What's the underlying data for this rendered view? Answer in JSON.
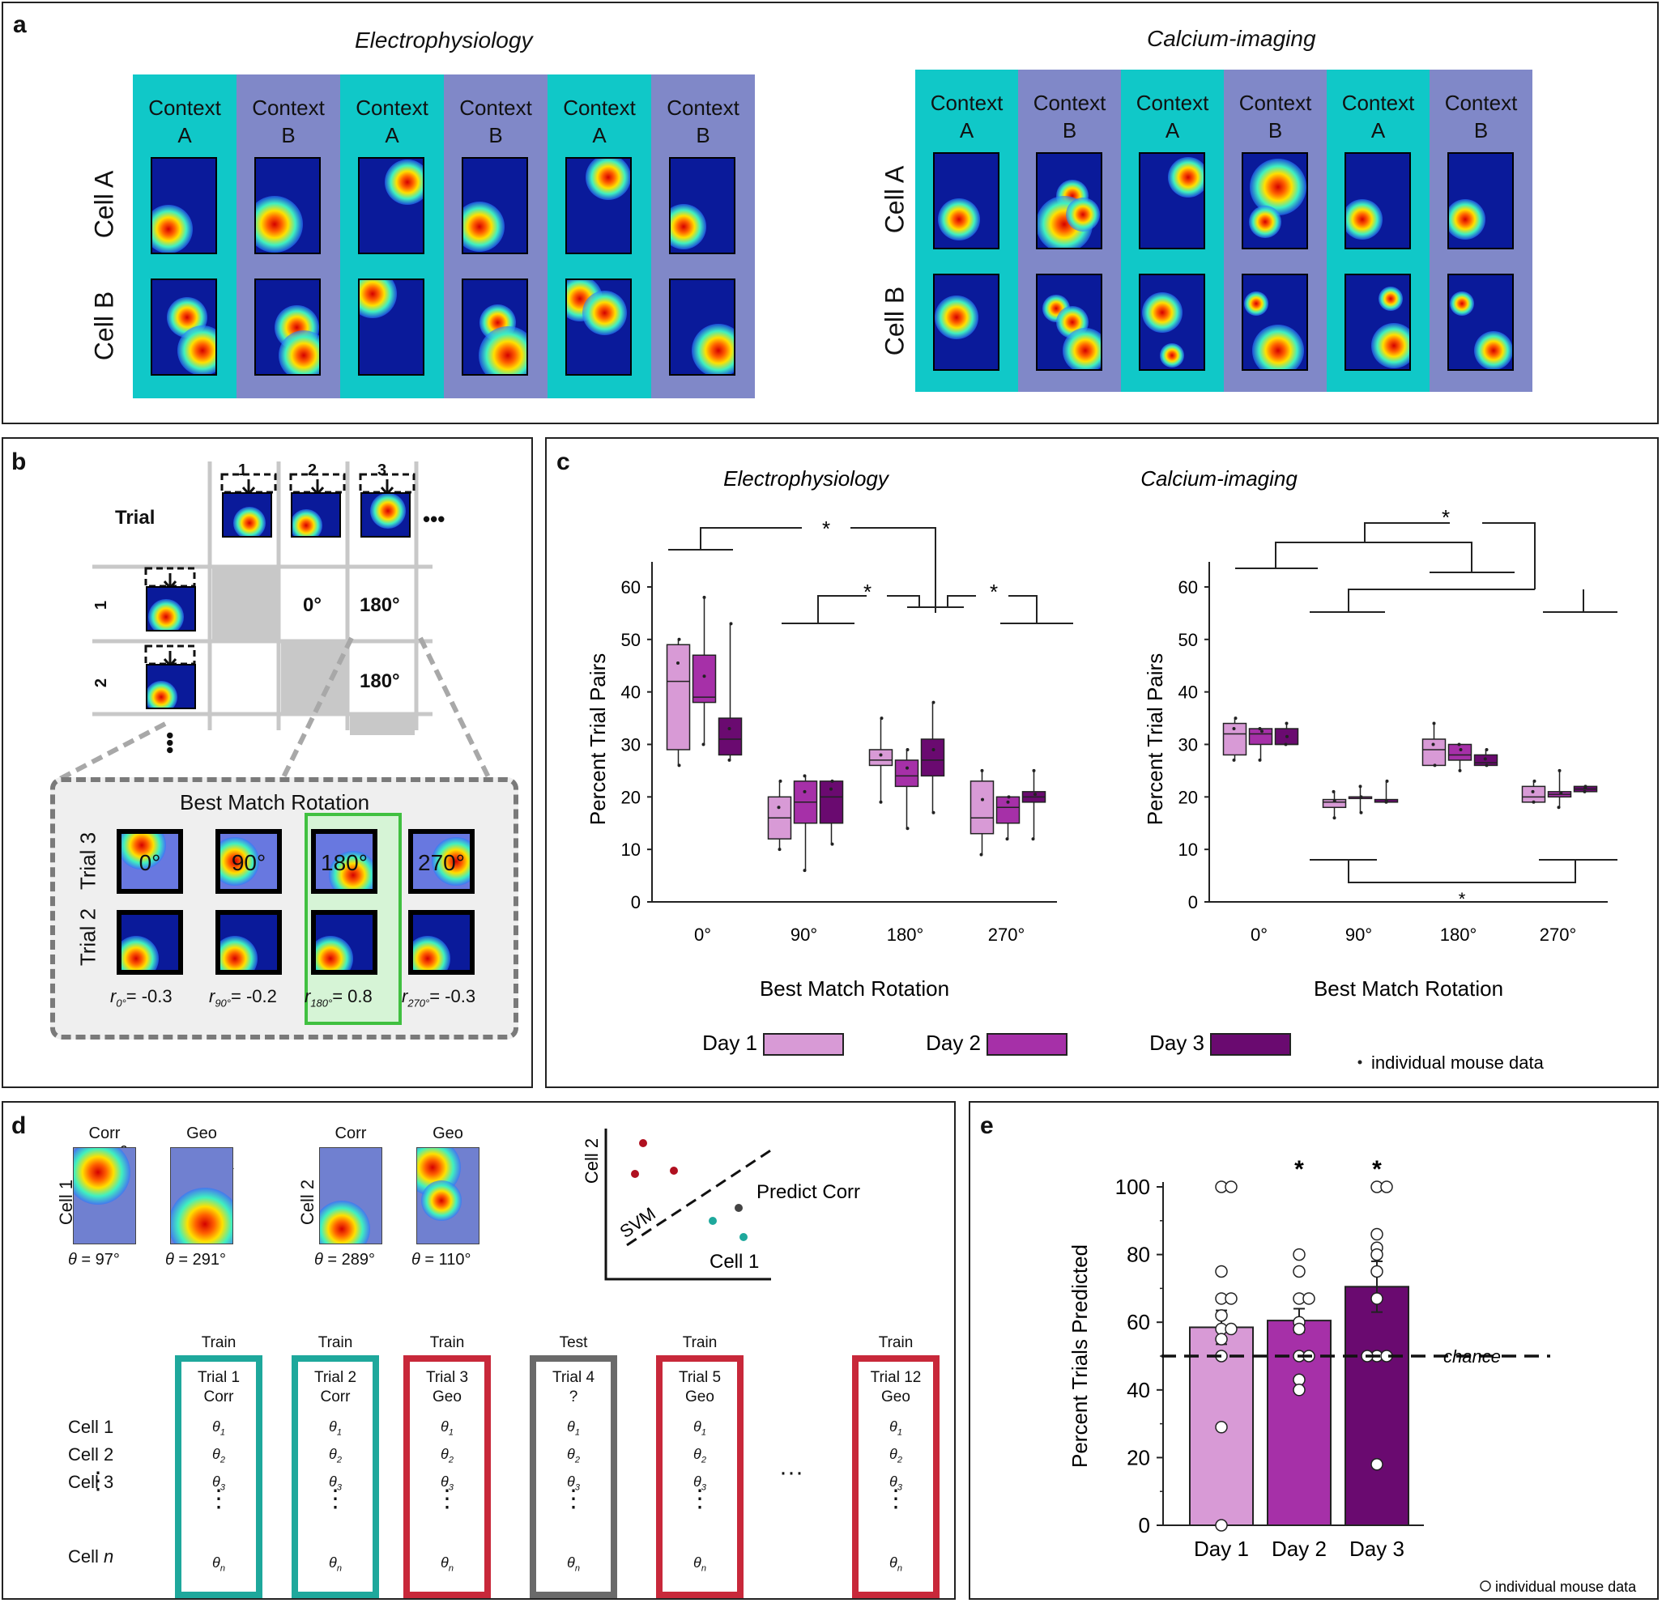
{
  "panel_a": {
    "label": "a",
    "ephys_title": "Electrophysiology",
    "calcium_title": "Calcium-imaging",
    "contexts": [
      {
        "word": "Context",
        "letter": "A"
      },
      {
        "word": "Context",
        "letter": "B"
      },
      {
        "word": "Context",
        "letter": "A"
      },
      {
        "word": "Context",
        "letter": "B"
      },
      {
        "word": "Context",
        "letter": "A"
      },
      {
        "word": "Context",
        "letter": "B"
      }
    ],
    "cell_a": "Cell A",
    "cell_b": "Cell B",
    "colors": {
      "context_a": "#10c8c8",
      "context_b": "#8088c8"
    }
  },
  "panel_b": {
    "label": "b",
    "trial_header": "Trial",
    "col_nums": [
      "1",
      "2",
      "3"
    ],
    "row_nums": [
      "1",
      "2"
    ],
    "ellipsis": "•••",
    "cells": {
      "r1c2": "0°",
      "r1c3": "180°",
      "r2c3": "180°"
    },
    "inset_title": "Best Match Rotation",
    "inset_rows": [
      "Trial 3",
      "Trial 2"
    ],
    "rotations": [
      "0°",
      "90°",
      "180°",
      "270°"
    ],
    "r_values": [
      {
        "sym": "r",
        "sub": "0°",
        "val": "= -0.3"
      },
      {
        "sym": "r",
        "sub": "90°",
        "val": "= -0.2"
      },
      {
        "sym": "r",
        "sub": "180°",
        "val": "= 0.8"
      },
      {
        "sym": "r",
        "sub": "270°",
        "val": "= -0.3"
      }
    ]
  },
  "panel_c": {
    "label": "c",
    "legend": {
      "day1": "Day 1",
      "day2": "Day 2",
      "day3": "Day 3",
      "mouse": "individual mouse data",
      "colors": [
        "#d89ad6",
        "#a630a8",
        "#6a0a70"
      ]
    },
    "star": "*",
    "chart_data": [
      {
        "type": "box",
        "title": "Electrophysiology",
        "xlabel": "Best Match Rotation",
        "ylabel": "Percent Trial Pairs",
        "categories": [
          "0°",
          "90°",
          "180°",
          "270°"
        ],
        "ylim": [
          0,
          62
        ],
        "yticks": [
          "0",
          "10",
          "20",
          "30",
          "40",
          "50",
          "60"
        ],
        "series": [
          {
            "name": "Day 1",
            "boxes": [
              {
                "q1": 29,
                "med": 42,
                "q3": 49,
                "min": 26,
                "max": 50
              },
              {
                "q1": 12,
                "med": 16,
                "q3": 20,
                "min": 10,
                "max": 23
              },
              {
                "q1": 26,
                "med": 27,
                "q3": 29,
                "min": 19,
                "max": 35
              },
              {
                "q1": 13,
                "med": 16,
                "q3": 23,
                "min": 9,
                "max": 25
              }
            ]
          },
          {
            "name": "Day 2",
            "boxes": [
              {
                "q1": 38,
                "med": 39,
                "q3": 47,
                "min": 30,
                "max": 58
              },
              {
                "q1": 15,
                "med": 19,
                "q3": 23,
                "min": 6,
                "max": 24
              },
              {
                "q1": 22,
                "med": 24,
                "q3": 27,
                "min": 14,
                "max": 29
              },
              {
                "q1": 15,
                "med": 18,
                "q3": 20,
                "min": 12,
                "max": 20
              }
            ]
          },
          {
            "name": "Day 3",
            "boxes": [
              {
                "q1": 28,
                "med": 31,
                "q3": 35,
                "min": 27,
                "max": 53
              },
              {
                "q1": 15,
                "med": 20,
                "q3": 23,
                "min": 11,
                "max": 23
              },
              {
                "q1": 24,
                "med": 27,
                "q3": 31,
                "min": 17,
                "max": 38
              },
              {
                "q1": 19,
                "med": 20,
                "q3": 21,
                "min": 12,
                "max": 25
              }
            ]
          }
        ]
      },
      {
        "type": "box",
        "title": "Calcium-imaging",
        "xlabel": "Best Match Rotation",
        "ylabel": "Percent Trial Pairs",
        "categories": [
          "0°",
          "90°",
          "180°",
          "270°"
        ],
        "ylim": [
          0,
          62
        ],
        "yticks": [
          "0",
          "10",
          "20",
          "30",
          "40",
          "50",
          "60"
        ],
        "series": [
          {
            "name": "Day 1",
            "boxes": [
              {
                "q1": 28,
                "med": 32,
                "q3": 34,
                "min": 27,
                "max": 35
              },
              {
                "q1": 18,
                "med": 19,
                "q3": 19.5,
                "min": 16,
                "max": 21
              },
              {
                "q1": 26,
                "med": 29,
                "q3": 31,
                "min": 26,
                "max": 34
              },
              {
                "q1": 19,
                "med": 20,
                "q3": 22,
                "min": 19,
                "max": 23
              }
            ]
          },
          {
            "name": "Day 2",
            "boxes": [
              {
                "q1": 30,
                "med": 32,
                "q3": 33,
                "min": 27,
                "max": 33
              },
              {
                "q1": 20,
                "med": 20,
                "q3": 20,
                "min": 17,
                "max": 22
              },
              {
                "q1": 27,
                "med": 28,
                "q3": 30,
                "min": 25,
                "max": 30
              },
              {
                "q1": 20,
                "med": 20.5,
                "q3": 21,
                "min": 18,
                "max": 25
              }
            ]
          },
          {
            "name": "Day 3",
            "boxes": [
              {
                "q1": 30,
                "med": 30,
                "q3": 33,
                "min": 30,
                "max": 34
              },
              {
                "q1": 19,
                "med": 19,
                "q3": 19.5,
                "min": 19,
                "max": 23
              },
              {
                "q1": 26,
                "med": 26.5,
                "q3": 28,
                "min": 26,
                "max": 29
              },
              {
                "q1": 21,
                "med": 21.5,
                "q3": 22,
                "min": 21,
                "max": 22
              }
            ]
          }
        ]
      }
    ]
  },
  "panel_d": {
    "label": "d",
    "cell1_label": "Cell 1",
    "cell2_label": "Cell 2",
    "corr": "Corr",
    "geo": "Geo",
    "angles": [
      "= 97°",
      "= 291°",
      "= 289°",
      "= 110°"
    ],
    "theta": "θ",
    "svm": {
      "yaxis": "Cell 2",
      "xaxis": "Cell 1",
      "boundary": "SVM",
      "predict": "Predict Corr"
    },
    "row_labels": [
      "Cell 1",
      "Cell 2",
      "Cell 3",
      "Cell n"
    ],
    "cell_n": {
      "text": "Cell ",
      "italic": "n"
    },
    "ellipsis": "···",
    "trials": [
      {
        "head": "Train",
        "l1": "Trial 1",
        "l2": "Corr",
        "color": "#1ea89c"
      },
      {
        "head": "Train",
        "l1": "Trial 2",
        "l2": "Corr",
        "color": "#1ea89c"
      },
      {
        "head": "Train",
        "l1": "Trial 3",
        "l2": "Geo",
        "color": "#c8283a"
      },
      {
        "head": "Test",
        "l1": "Trial 4",
        "l2": "?",
        "color": "#6a6a6a"
      },
      {
        "head": "Train",
        "l1": "Trial 5",
        "l2": "Geo",
        "color": "#c8283a"
      },
      {
        "head": "Train",
        "l1": "Trial 12",
        "l2": "Geo",
        "color": "#c8283a"
      }
    ],
    "subs": [
      "1",
      "2",
      "3",
      "n"
    ]
  },
  "panel_e": {
    "label": "e",
    "star": "*",
    "chance": "chance",
    "mouse": "individual mouse data",
    "chart_data": {
      "type": "bar",
      "ylabel": "Percent Trials Predicted",
      "categories": [
        "Day 1",
        "Day 2",
        "Day 3"
      ],
      "values": [
        58.5,
        60.5,
        70.5
      ],
      "errors": [
        5,
        3.5,
        7.5
      ],
      "colors": [
        "#d89ad6",
        "#a630a8",
        "#6a0a70"
      ],
      "chance": 50,
      "ylim": [
        0,
        100
      ],
      "yticks": [
        "0",
        "20",
        "40",
        "60",
        "80",
        "100"
      ],
      "significant": [
        false,
        true,
        true
      ],
      "points": [
        [
          100,
          100,
          75,
          67,
          67,
          62,
          58,
          58,
          55,
          50,
          29,
          0
        ],
        [
          80,
          75,
          67,
          67,
          60,
          58,
          50,
          50,
          43,
          40
        ],
        [
          100,
          100,
          86,
          82,
          80,
          75,
          67,
          50,
          50,
          50,
          18
        ]
      ]
    }
  }
}
